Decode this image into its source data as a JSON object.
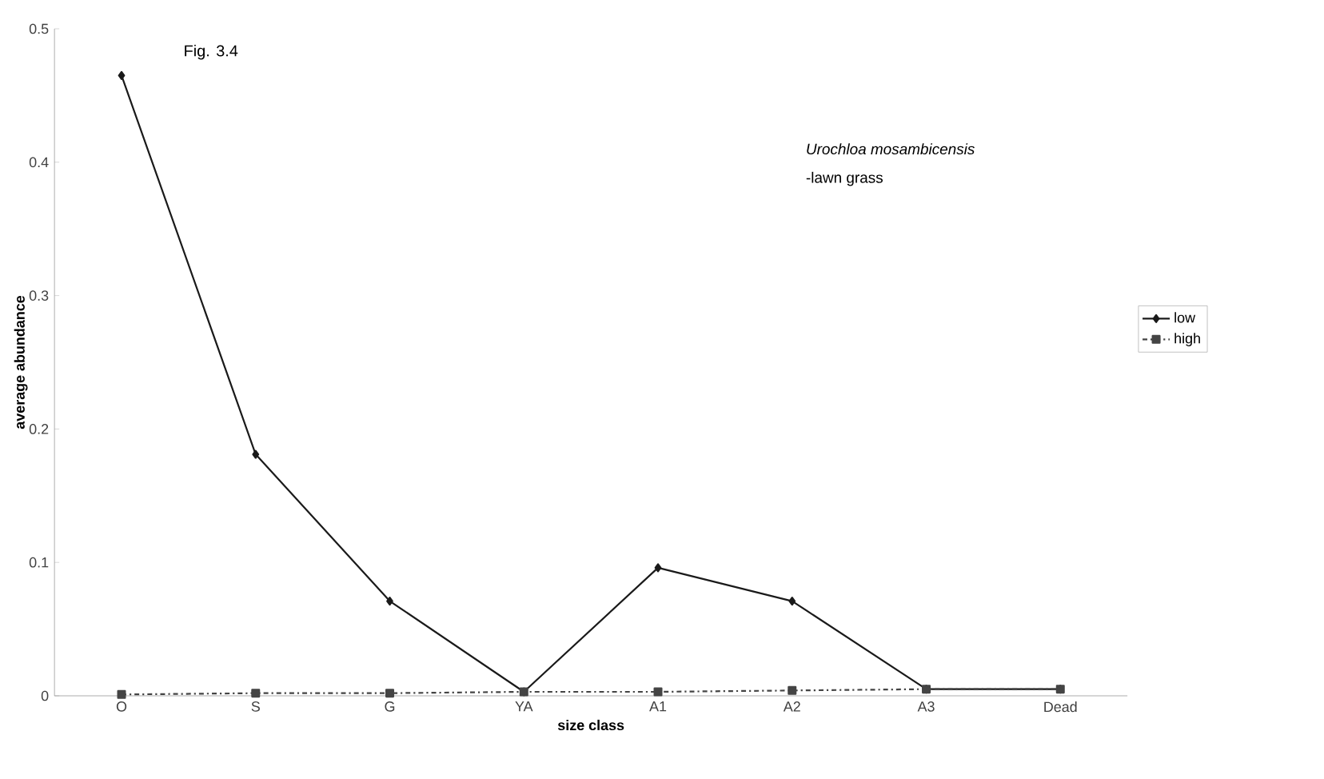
{
  "chart_data": {
    "type": "line",
    "xlabel": "size class",
    "ylabel": "average abundance",
    "annotations": [
      "Fig. 3.4",
      "*Urochloa mosambicensis*",
      "-lawn grass"
    ],
    "categories": [
      "O",
      "S",
      "G",
      "YA",
      "A1",
      "A2",
      "A3",
      "Dead"
    ],
    "series": [
      {
        "name": "low",
        "color": "#1a1a1a",
        "marker": "diamond",
        "line_style": "solid",
        "values": [
          0.465,
          0.181,
          0.071,
          0.003,
          0.096,
          0.071,
          0.005,
          0.005
        ]
      },
      {
        "name": "high",
        "color": "#444444",
        "marker": "square",
        "line_style": "dashed",
        "values": [
          0.001,
          0.002,
          0.002,
          0.003,
          0.003,
          0.004,
          0.005,
          0.005
        ]
      }
    ],
    "ylim": [
      0,
      0.5
    ],
    "yticks": [
      0,
      0.1,
      0.2,
      0.3,
      0.4,
      0.5
    ],
    "grid": false,
    "legend": "right"
  }
}
